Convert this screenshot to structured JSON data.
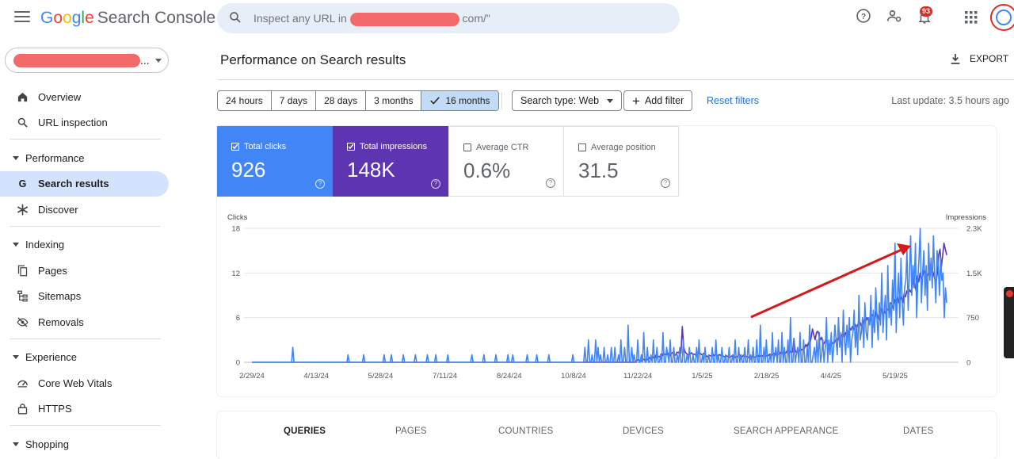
{
  "app": {
    "logo_letters": [
      "G",
      "o",
      "o",
      "g",
      "l",
      "e"
    ],
    "logo_rest": "Search Console"
  },
  "search": {
    "placeholder_start": "Inspect any URL in",
    "placeholder_end": "com/\""
  },
  "notifications": {
    "count": "93"
  },
  "property": {
    "suffix": "..."
  },
  "sidebar": {
    "items": [
      {
        "label": "Overview",
        "icon": "home-icon"
      },
      {
        "label": "URL inspection",
        "icon": "search-icon"
      }
    ],
    "performance": {
      "heading": "Performance",
      "items": [
        {
          "label": "Search results",
          "icon": "google-g-icon",
          "active": true
        },
        {
          "label": "Discover",
          "icon": "asterisk-icon"
        }
      ]
    },
    "indexing": {
      "heading": "Indexing",
      "items": [
        {
          "label": "Pages",
          "icon": "pages-icon"
        },
        {
          "label": "Sitemaps",
          "icon": "sitemap-icon"
        },
        {
          "label": "Removals",
          "icon": "eye-off-icon"
        }
      ]
    },
    "experience": {
      "heading": "Experience",
      "items": [
        {
          "label": "Core Web Vitals",
          "icon": "gauge-icon"
        },
        {
          "label": "HTTPS",
          "icon": "lock-icon"
        }
      ]
    },
    "shopping": {
      "heading": "Shopping"
    }
  },
  "page": {
    "title": "Performance on Search results",
    "export_label": "EXPORT",
    "last_update": "Last update: 3.5 hours ago"
  },
  "filters": {
    "ranges": [
      "24 hours",
      "7 days",
      "28 days",
      "3 months",
      "16 months"
    ],
    "selected_range": "16 months",
    "search_type": "Search type: Web",
    "add_filter": "Add filter",
    "reset": "Reset filters"
  },
  "metrics": [
    {
      "label": "Total clicks",
      "value": "926",
      "checked": true,
      "color": "#4285f4"
    },
    {
      "label": "Total impressions",
      "value": "148K",
      "checked": true,
      "color": "#5e35b1"
    },
    {
      "label": "Average CTR",
      "value": "0.6%",
      "checked": false
    },
    {
      "label": "Average position",
      "value": "31.5",
      "checked": false
    }
  ],
  "chart_data": {
    "type": "line",
    "left_axis_label": "Clicks",
    "right_axis_label": "Impressions",
    "left_ticks": [
      "18",
      "12",
      "6",
      "0"
    ],
    "left_tick_values": [
      18,
      12,
      6,
      0
    ],
    "right_ticks": [
      "2.3K",
      "1.5K",
      "750",
      "0"
    ],
    "right_tick_values": [
      2250,
      1500,
      750,
      0
    ],
    "x_ticks": [
      "2/29/24",
      "4/13/24",
      "5/28/24",
      "7/11/24",
      "8/24/24",
      "10/8/24",
      "11/22/24",
      "1/5/25",
      "2/18/25",
      "4/4/25",
      "5/19/25"
    ],
    "grid": true,
    "series": [
      {
        "name": "Clicks",
        "color": "#4285f4",
        "axis": "left",
        "values": [
          0,
          0,
          0,
          0,
          0,
          0,
          0,
          0,
          0,
          0,
          0,
          0,
          0,
          0,
          0,
          0,
          0,
          0,
          0,
          0,
          0,
          0,
          0,
          0,
          0,
          0,
          0,
          0,
          0,
          0,
          0,
          0,
          0,
          0,
          2,
          0,
          0,
          0,
          0,
          0,
          0,
          0,
          0,
          0,
          0,
          0,
          0,
          0,
          0,
          0,
          0,
          0,
          0,
          0,
          0,
          0,
          0,
          0,
          0,
          0,
          0,
          0,
          0,
          0,
          0,
          0,
          0,
          0,
          0,
          0,
          0,
          0,
          0,
          0,
          0,
          0,
          0,
          0,
          0,
          0,
          1,
          0,
          0,
          0,
          0,
          0,
          0,
          0,
          0,
          0,
          0,
          0,
          0,
          1,
          0,
          0,
          0,
          0,
          0,
          0,
          0,
          0,
          0,
          0,
          0,
          0,
          0,
          0,
          0,
          0,
          1,
          0,
          0,
          0,
          0,
          0,
          1,
          0,
          0,
          0,
          0,
          0,
          0,
          0,
          0,
          0,
          1,
          0,
          0,
          0,
          0,
          0,
          0,
          0,
          0,
          0,
          1,
          0,
          0,
          0,
          0,
          0,
          0,
          0,
          0,
          0,
          1,
          0,
          0,
          0,
          0,
          0,
          0,
          1,
          0,
          0,
          0,
          0,
          0,
          0,
          0,
          0,
          0,
          1,
          0,
          0,
          0,
          0,
          0,
          0,
          0,
          0,
          0,
          0,
          0,
          0,
          0,
          0,
          0,
          0,
          0,
          0,
          0,
          1,
          0,
          0,
          0,
          0,
          0,
          0,
          0,
          0,
          0,
          1,
          0,
          0,
          0,
          0,
          0,
          0,
          0,
          0,
          0,
          1,
          0,
          0,
          0,
          0,
          0,
          0,
          0,
          0,
          0,
          1,
          0,
          0,
          0,
          1,
          0,
          0,
          0,
          0,
          0,
          0,
          0,
          0,
          0,
          0,
          0,
          1,
          0,
          0,
          0,
          0,
          0,
          0,
          0,
          1,
          0,
          0,
          0,
          0,
          0,
          0,
          0,
          0,
          0,
          1,
          0,
          0,
          0,
          0,
          0,
          0,
          0,
          0,
          0,
          0,
          0,
          0,
          0,
          0,
          0,
          0,
          0,
          0,
          0,
          1,
          0,
          0,
          0,
          0,
          0,
          0,
          0,
          0,
          0,
          2,
          0,
          0,
          3,
          0,
          0,
          1,
          0,
          0,
          3,
          0,
          2,
          0,
          1,
          0,
          0,
          2,
          0,
          0,
          1,
          0,
          0,
          2,
          0,
          0,
          2,
          0,
          0,
          1,
          0,
          3,
          0,
          0,
          2,
          0,
          0,
          5,
          0,
          0,
          2,
          0,
          1,
          0,
          0,
          3,
          0,
          0,
          1,
          0,
          4,
          0,
          0,
          2,
          0,
          0,
          1,
          0,
          3,
          0,
          0,
          2,
          0,
          0,
          1,
          0,
          4,
          0,
          0,
          2,
          1,
          0,
          3,
          0,
          0,
          2,
          0,
          0,
          1,
          0,
          2,
          0,
          0,
          3,
          0,
          0,
          1,
          0,
          2,
          0,
          0,
          1,
          0,
          0,
          2,
          0,
          3,
          0,
          0,
          1,
          0,
          2,
          0,
          0,
          1,
          0,
          0,
          2,
          0,
          0,
          3,
          0,
          1,
          0,
          0,
          2,
          0,
          0,
          1,
          0,
          0,
          2,
          0,
          0,
          1,
          0,
          3,
          0,
          0,
          2,
          0,
          1,
          0,
          0,
          2,
          0,
          0,
          3,
          0,
          1,
          0,
          2,
          0,
          0,
          3,
          0,
          0,
          5,
          0,
          0,
          2,
          0,
          3,
          0,
          0,
          1,
          0,
          4,
          0,
          1,
          2,
          0,
          3,
          0,
          0,
          4,
          0,
          2,
          0,
          0,
          3,
          0,
          6,
          0,
          0,
          3,
          0,
          1,
          2,
          0,
          4,
          0,
          0,
          3,
          0,
          0,
          2,
          0,
          5,
          0,
          0,
          1,
          2,
          0,
          3,
          0,
          4,
          0,
          1,
          3,
          0,
          2,
          6,
          0,
          3,
          1,
          4,
          0,
          2,
          5,
          3,
          1,
          6,
          2,
          4,
          0,
          7,
          3,
          1,
          5,
          2,
          6,
          0,
          3,
          4,
          7,
          2,
          5,
          1,
          9,
          3,
          4,
          6,
          2,
          8,
          4,
          3,
          6,
          5,
          9,
          2,
          7,
          4,
          10,
          6,
          3,
          8,
          5,
          12,
          4,
          7,
          9,
          3,
          13,
          6,
          8,
          5,
          11,
          7,
          16,
          4,
          9,
          12,
          6,
          14,
          8,
          5,
          10,
          11,
          15,
          7,
          12,
          17,
          9,
          13,
          10,
          16,
          6,
          11,
          14,
          18,
          8,
          12,
          15,
          9,
          13,
          7,
          16,
          11,
          14,
          10,
          17,
          12,
          8,
          15,
          13,
          9,
          14,
          11,
          12,
          6,
          10,
          8
        ]
      },
      {
        "name": "Impressions",
        "color": "#5e35b1",
        "axis": "right",
        "values": [
          0,
          0,
          0,
          0,
          0,
          0,
          0,
          0,
          0,
          0,
          0,
          0,
          0,
          0,
          0,
          0,
          0,
          0,
          0,
          0,
          0,
          0,
          0,
          0,
          0,
          0,
          0,
          0,
          0,
          0,
          0,
          0,
          0,
          0,
          0,
          0,
          0,
          0,
          0,
          0,
          0,
          0,
          0,
          0,
          0,
          0,
          0,
          0,
          0,
          0,
          0,
          0,
          0,
          0,
          0,
          0,
          0,
          0,
          0,
          0,
          0,
          0,
          0,
          0,
          0,
          0,
          0,
          0,
          0,
          0,
          0,
          0,
          0,
          0,
          0,
          0,
          0,
          0,
          0,
          0,
          0,
          0,
          0,
          0,
          0,
          0,
          0,
          0,
          0,
          0,
          0,
          0,
          0,
          0,
          0,
          0,
          0,
          0,
          0,
          0,
          0,
          0,
          0,
          0,
          0,
          0,
          0,
          0,
          0,
          0,
          0,
          0,
          0,
          0,
          0,
          0,
          0,
          0,
          0,
          0,
          0,
          0,
          0,
          0,
          0,
          0,
          0,
          0,
          0,
          0,
          0,
          0,
          0,
          0,
          0,
          0,
          0,
          0,
          0,
          0,
          0,
          0,
          0,
          0,
          0,
          0,
          0,
          0,
          0,
          0,
          0,
          0,
          0,
          0,
          0,
          0,
          0,
          0,
          0,
          0,
          0,
          0,
          0,
          0,
          0,
          0,
          0,
          0,
          0,
          0,
          0,
          0,
          0,
          0,
          0,
          0,
          0,
          0,
          0,
          0,
          0,
          0,
          0,
          0,
          0,
          0,
          0,
          0,
          0,
          0,
          0,
          0,
          0,
          0,
          0,
          0,
          0,
          0,
          0,
          0,
          0,
          0,
          0,
          0,
          0,
          0,
          0,
          0,
          0,
          0,
          0,
          0,
          0,
          0,
          0,
          0,
          0,
          0,
          0,
          0,
          0,
          0,
          0,
          0,
          0,
          0,
          0,
          0,
          0,
          0,
          0,
          0,
          0,
          0,
          0,
          0,
          0,
          0,
          0,
          0,
          0,
          0,
          0,
          0,
          0,
          0,
          0,
          0,
          0,
          0,
          0,
          0,
          0,
          0,
          0,
          0,
          0,
          0,
          0,
          0,
          0,
          0,
          0,
          0,
          0,
          0,
          0,
          0,
          0,
          0,
          0,
          0,
          0,
          0,
          0,
          0,
          0,
          0,
          0,
          0,
          0,
          0,
          0,
          0,
          0,
          0,
          0,
          0,
          0,
          20,
          30,
          50,
          30,
          20,
          40,
          50,
          30,
          60,
          40,
          80,
          50,
          60,
          90,
          60,
          120,
          80,
          100,
          90,
          140,
          110,
          150,
          130,
          120,
          160,
          130,
          110,
          150,
          170,
          130,
          120,
          170,
          160,
          190,
          150,
          600,
          260,
          180,
          150,
          130,
          120,
          140,
          160,
          130,
          140,
          120,
          100,
          140,
          160,
          140,
          120,
          150,
          130,
          110,
          90,
          120,
          110,
          100,
          140,
          110,
          130,
          120,
          100,
          130,
          110,
          120,
          100,
          90,
          110,
          100,
          80,
          90,
          100,
          120,
          100,
          80,
          90,
          110,
          130,
          100,
          90,
          120,
          110,
          100,
          90,
          80,
          100,
          90,
          110,
          80,
          90,
          100,
          120,
          90,
          110,
          100,
          120,
          130,
          110,
          100,
          120,
          140,
          110,
          130,
          150,
          120,
          160,
          140,
          130,
          170,
          150,
          180,
          140,
          160,
          200,
          170,
          190,
          160,
          180,
          400,
          200,
          160,
          180,
          210,
          190,
          220,
          200,
          240,
          300,
          260,
          330,
          300,
          420,
          560,
          460,
          380,
          500,
          520,
          450,
          380,
          420,
          300,
          330,
          380,
          320,
          260,
          300,
          280,
          330,
          310,
          350,
          400,
          360,
          420,
          380,
          450,
          480,
          420,
          500,
          460,
          520,
          580,
          540,
          600,
          550,
          640,
          580,
          620,
          700,
          660,
          600,
          640,
          720,
          680,
          750,
          700,
          660,
          740,
          800,
          760,
          720,
          850,
          780,
          700,
          820,
          900,
          760,
          860,
          820,
          900,
          880,
          940,
          1000,
          950,
          900,
          1050,
          980,
          1100,
          1000,
          1120,
          1060,
          1000,
          1150,
          1100,
          1200,
          1140,
          1220,
          1180,
          1250,
          1400,
          1300,
          1200,
          1450,
          1350,
          1500,
          1400,
          1450,
          1550,
          1500,
          1480,
          1450,
          1500,
          1600,
          1550,
          1500,
          1400,
          1350,
          1500,
          1800,
          1900,
          1600,
          1800,
          2000,
          1900,
          1800
        ]
      }
    ]
  },
  "tabs": [
    "QUERIES",
    "PAGES",
    "COUNTRIES",
    "DEVICES",
    "SEARCH APPEARANCE",
    "DATES"
  ],
  "selected_tab": "QUERIES"
}
